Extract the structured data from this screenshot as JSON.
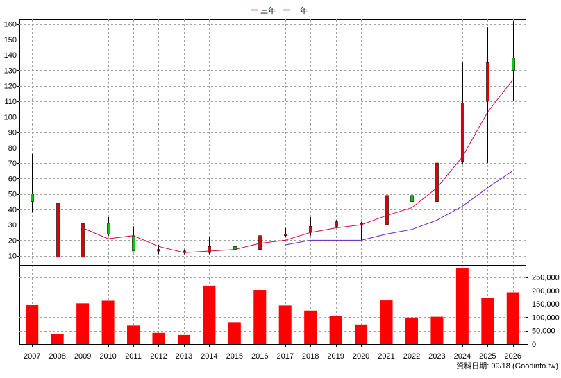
{
  "chart_data": [
    {
      "type": "candlestick",
      "legend": {
        "placement": "top-center",
        "entries": [
          {
            "name": "三年",
            "color": "#d6004f"
          },
          {
            "name": "十年",
            "color": "#6a1fd0"
          }
        ]
      },
      "y_ticks": [
        10,
        20,
        30,
        40,
        50,
        60,
        70,
        80,
        90,
        100,
        110,
        120,
        130,
        140,
        150,
        160
      ],
      "ylim": [
        4,
        163
      ],
      "grid": true,
      "categories": [
        "2007",
        "2008",
        "2009",
        "2010",
        "2011",
        "2012",
        "2013",
        "2014",
        "2015",
        "2016",
        "2017",
        "2018",
        "2019",
        "2020",
        "2021",
        "2022",
        "2023",
        "2024",
        "2025",
        "2026"
      ],
      "candles": [
        {
          "year": "2007",
          "open": 45,
          "close": 50,
          "high": 76,
          "low": 38
        },
        {
          "year": "2008",
          "open": 44,
          "close": 9,
          "high": 45,
          "low": 8
        },
        {
          "year": "2009",
          "open": 31,
          "close": 9,
          "high": 35,
          "low": 8
        },
        {
          "year": "2010",
          "open": 24,
          "close": 31,
          "high": 35,
          "low": 23
        },
        {
          "year": "2011",
          "open": 13,
          "close": 23,
          "high": 29,
          "low": 13
        },
        {
          "year": "2012",
          "open": 14,
          "close": 13,
          "high": 17,
          "low": 11
        },
        {
          "year": "2013",
          "open": 13,
          "close": 12,
          "high": 14,
          "low": 11
        },
        {
          "year": "2014",
          "open": 16,
          "close": 12,
          "high": 22,
          "low": 11
        },
        {
          "year": "2015",
          "open": 14,
          "close": 16,
          "high": 17,
          "low": 13
        },
        {
          "year": "2016",
          "open": 23,
          "close": 14,
          "high": 25,
          "low": 13
        },
        {
          "year": "2017",
          "open": 24,
          "close": 23,
          "high": 28,
          "low": 22
        },
        {
          "year": "2018",
          "open": 29,
          "close": 25,
          "high": 35,
          "low": 23
        },
        {
          "year": "2019",
          "open": 32,
          "close": 29,
          "high": 33,
          "low": 28
        },
        {
          "year": "2020",
          "open": 31,
          "close": 30,
          "high": 32,
          "low": 20
        },
        {
          "year": "2021",
          "open": 49,
          "close": 30,
          "high": 54,
          "low": 28
        },
        {
          "year": "2022",
          "open": 45,
          "close": 49,
          "high": 54,
          "low": 37
        },
        {
          "year": "2023",
          "open": 70,
          "close": 45,
          "high": 73,
          "low": 43
        },
        {
          "year": "2024",
          "open": 109,
          "close": 71,
          "high": 135,
          "low": 69
        },
        {
          "year": "2025",
          "open": 135,
          "close": 110,
          "high": 158,
          "low": 70
        },
        {
          "year": "2026",
          "open": 130,
          "close": 138,
          "high": 162,
          "low": 110
        }
      ],
      "series": [
        {
          "name": "三年",
          "values": [
            null,
            null,
            28,
            21,
            23,
            16,
            12,
            13,
            14,
            18,
            20,
            25,
            28,
            30,
            36,
            41,
            54,
            74,
            103,
            124
          ]
        },
        {
          "name": "十年",
          "values": [
            null,
            null,
            null,
            null,
            null,
            null,
            null,
            null,
            null,
            null,
            17,
            20,
            20,
            20,
            24,
            27,
            33,
            42,
            54,
            65
          ]
        }
      ],
      "colors": {
        "up": "#00cc00",
        "down": "#e00000",
        "wick": "#000000"
      }
    },
    {
      "type": "bar",
      "categories": [
        "2007",
        "2008",
        "2009",
        "2010",
        "2011",
        "2012",
        "2013",
        "2014",
        "2015",
        "2016",
        "2017",
        "2018",
        "2019",
        "2020",
        "2021",
        "2022",
        "2023",
        "2024",
        "2025",
        "2026"
      ],
      "values": [
        145000,
        38000,
        152000,
        162000,
        69000,
        42000,
        34000,
        218000,
        82000,
        202000,
        144000,
        125000,
        105000,
        73000,
        163000,
        99000,
        102000,
        285000,
        173000,
        193000
      ],
      "y_ticks": [
        0,
        50000,
        100000,
        150000,
        200000,
        250000
      ],
      "y_tick_labels": [
        "0",
        "50,000",
        "100,000",
        "150,000",
        "200,000",
        "250,000"
      ],
      "ylim": [
        0,
        285000
      ],
      "grid": true,
      "color": "#ff0000"
    }
  ],
  "footer": {
    "date_text": "資料日期: 09/18  (Goodinfo.tw)"
  }
}
